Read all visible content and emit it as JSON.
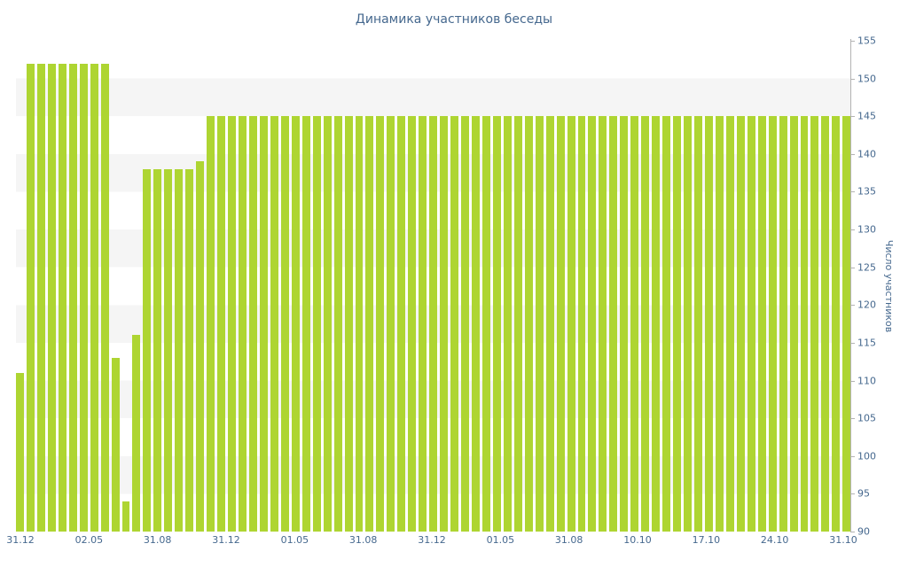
{
  "chart_data": {
    "type": "bar",
    "title": "Динамика участников беседы",
    "xlabel": "",
    "ylabel": "Число участников",
    "ylim": [
      90,
      155
    ],
    "y_ticks": [
      155,
      150,
      145,
      140,
      135,
      130,
      125,
      120,
      115,
      110,
      105,
      100,
      95,
      90
    ],
    "x_tick_labels": [
      "31.12",
      "02.05",
      "31.08",
      "31.12",
      "01.05",
      "31.08",
      "31.12",
      "01.05",
      "31.08",
      "10.10",
      "17.10",
      "24.10",
      "31.10"
    ],
    "values": [
      111,
      152,
      152,
      152,
      152,
      152,
      152,
      152,
      152,
      113,
      94,
      116,
      138,
      138,
      138,
      138,
      138,
      139,
      145,
      145,
      145,
      145,
      145,
      145,
      145,
      145,
      145,
      145,
      145,
      145,
      145,
      145,
      145,
      145,
      145,
      145,
      145,
      145,
      145,
      145,
      145,
      145,
      145,
      145,
      145,
      145,
      145,
      145,
      145,
      145,
      145,
      145,
      145,
      145,
      145,
      145,
      145,
      145,
      145,
      145,
      145,
      145,
      145,
      145,
      145,
      145,
      145,
      145,
      145,
      145,
      145,
      145,
      145,
      145,
      145,
      145,
      145,
      145,
      145
    ],
    "grid": "horizontal-striped-bands-every-5-units",
    "legend": "none",
    "bar_color": "#aed532",
    "label_color": "#45688e",
    "stripe_color": "#f5f5f5",
    "axis_color": "#b3b3b3"
  }
}
